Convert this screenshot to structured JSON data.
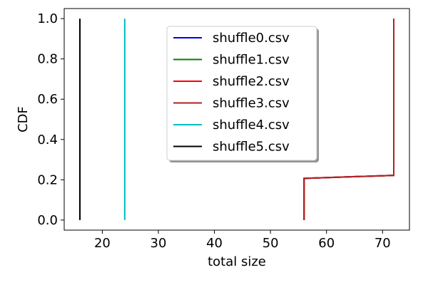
{
  "chart_data": {
    "type": "line",
    "title": "",
    "xlabel": "total size",
    "ylabel": "CDF",
    "xlim": [
      13.2,
      74.8
    ],
    "ylim": [
      -0.05,
      1.05
    ],
    "xticks": [
      "20",
      "30",
      "40",
      "50",
      "60",
      "70"
    ],
    "yticks": [
      "0.0",
      "0.2",
      "0.4",
      "0.6",
      "0.8",
      "1.0"
    ],
    "grid": false,
    "legend_position": "top-center",
    "series": [
      {
        "name": "shuffle0.csv",
        "color": "#0000ff",
        "x": [
          56,
          56,
          72,
          72
        ],
        "y": [
          0.0,
          0.207,
          0.222,
          1.0
        ]
      },
      {
        "name": "shuffle1.csv",
        "color": "#008000",
        "x": [
          56,
          56,
          72,
          72
        ],
        "y": [
          0.0,
          0.207,
          0.222,
          1.0
        ]
      },
      {
        "name": "shuffle2.csv",
        "color": "#ff0000",
        "x": [
          56,
          56,
          72,
          72
        ],
        "y": [
          0.0,
          0.207,
          0.222,
          1.0
        ]
      },
      {
        "name": "shuffle3.csv",
        "color": "#b22222",
        "x": [
          56,
          56,
          72,
          72
        ],
        "y": [
          0.0,
          0.207,
          0.222,
          1.0
        ]
      },
      {
        "name": "shuffle4.csv",
        "color": "#00bfbf",
        "x": [
          24,
          24
        ],
        "y": [
          0.0,
          1.0
        ]
      },
      {
        "name": "shuffle5.csv",
        "color": "#000000",
        "x": [
          16,
          16
        ],
        "y": [
          0.0,
          1.0
        ]
      }
    ]
  }
}
